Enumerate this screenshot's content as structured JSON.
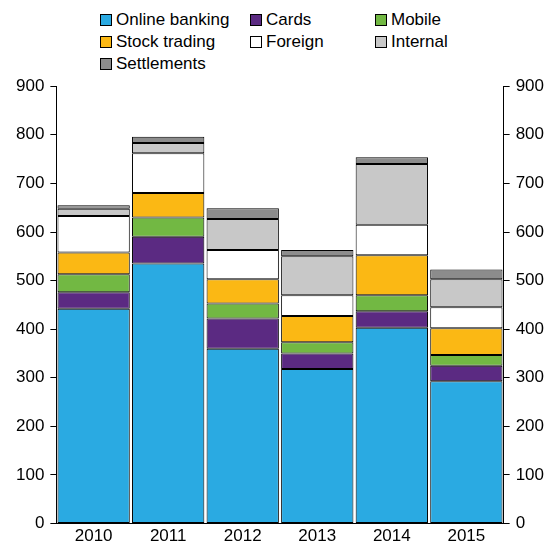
{
  "chart_data": {
    "type": "bar",
    "stacked": true,
    "grid": false,
    "legend": "top",
    "categories": [
      "2010",
      "2011",
      "2012",
      "2013",
      "2014",
      "2015"
    ],
    "series": [
      {
        "name": "Online banking",
        "color": "#2aaae2",
        "values": [
          442,
          535,
          360,
          318,
          403,
          293
        ]
      },
      {
        "name": "Cards",
        "color": "#5b2a82",
        "values": [
          34,
          55,
          62,
          32,
          34,
          32
        ]
      },
      {
        "name": "Mobile",
        "color": "#72b843",
        "values": [
          37,
          40,
          31,
          23,
          33,
          22
        ]
      },
      {
        "name": "Stock trading",
        "color": "#fbb814",
        "values": [
          45,
          50,
          50,
          54,
          82,
          55
        ]
      },
      {
        "name": "Foreign",
        "color": "#ffffff",
        "values": [
          75,
          82,
          60,
          43,
          63,
          43
        ]
      },
      {
        "name": "Internal",
        "color": "#c8c8c8",
        "values": [
          15,
          21,
          64,
          80,
          125,
          58
        ]
      },
      {
        "name": "Settlements",
        "color": "#8c8c8c",
        "values": [
          7,
          13,
          22,
          13,
          14,
          20
        ]
      }
    ],
    "ylim": [
      0,
      900
    ],
    "yticks": [
      0,
      100,
      200,
      300,
      400,
      500,
      600,
      700,
      800,
      900
    ],
    "y2lim": [
      0,
      900
    ],
    "y2ticks": [
      0,
      100,
      200,
      300,
      400,
      500,
      600,
      700,
      800,
      900
    ]
  }
}
